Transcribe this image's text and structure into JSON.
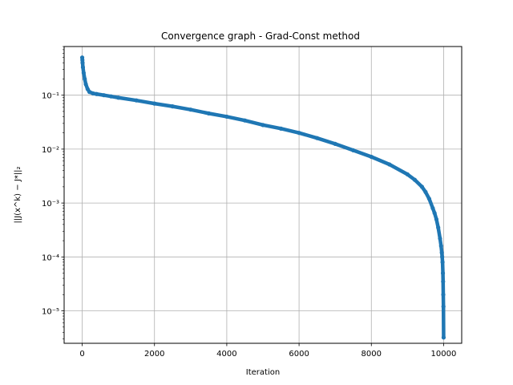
{
  "chart_data": {
    "type": "line",
    "title": "Convergence graph - Grad-Const method",
    "xlabel": "Iteration",
    "ylabel": "||J(x^k) − J*||₂",
    "yscale": "log",
    "grid": true,
    "xlim": [
      -500,
      10500
    ],
    "ylim": [
      2.5e-06,
      0.8
    ],
    "x_ticks": [
      0,
      2000,
      4000,
      6000,
      8000,
      10000
    ],
    "x_tick_labels": [
      "0",
      "2000",
      "4000",
      "6000",
      "8000",
      "10000"
    ],
    "y_ticks": [
      1e-05,
      0.0001,
      0.001,
      0.01,
      0.1
    ],
    "y_tick_labels": [
      "10⁻⁵",
      "10⁻⁴",
      "10⁻³",
      "10⁻²",
      "10⁻¹"
    ],
    "series": [
      {
        "color": "#1f77b4",
        "marker": "circle",
        "x": [
          0,
          5,
          10,
          20,
          40,
          70,
          100,
          150,
          200,
          300,
          400,
          600,
          800,
          1000,
          1500,
          2000,
          2500,
          3000,
          3500,
          4000,
          4500,
          5000,
          5500,
          6000,
          6500,
          7000,
          7500,
          8000,
          8500,
          9000,
          9200,
          9400,
          9500,
          9600,
          9700,
          9750,
          9800,
          9850,
          9900,
          9930,
          9950,
          9960,
          9970,
          9980,
          9985,
          9990,
          9995,
          10000
        ],
        "y": [
          0.5,
          0.45,
          0.4,
          0.33,
          0.26,
          0.2,
          0.16,
          0.13,
          0.115,
          0.108,
          0.105,
          0.1,
          0.095,
          0.09,
          0.08,
          0.07,
          0.062,
          0.054,
          0.046,
          0.04,
          0.034,
          0.028,
          0.024,
          0.02,
          0.016,
          0.0125,
          0.0095,
          0.0072,
          0.0052,
          0.0034,
          0.0027,
          0.002,
          0.0016,
          0.0012,
          0.0008,
          0.00065,
          0.0005,
          0.00035,
          0.00022,
          0.00016,
          0.00012,
          0.0001,
          8e-05,
          5e-05,
          3.5e-05,
          2e-05,
          1.2e-05,
          3.2e-06
        ]
      }
    ]
  }
}
